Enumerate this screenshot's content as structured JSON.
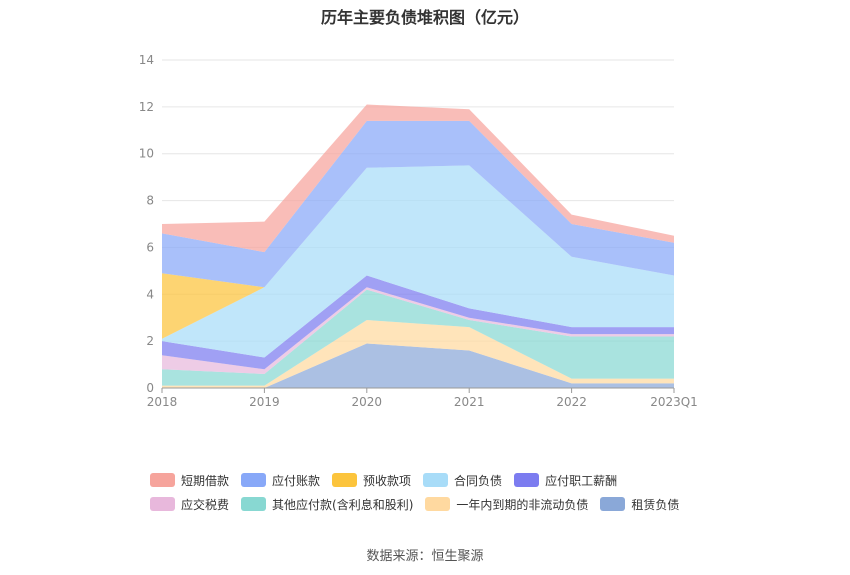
{
  "chart_data": {
    "type": "area",
    "stacked": true,
    "title": "历年主要负债堆积图（亿元）",
    "categories": [
      "2018",
      "2019",
      "2020",
      "2021",
      "2022",
      "2023Q1"
    ],
    "ylim": [
      0,
      14
    ],
    "yticks": [
      "0",
      "2",
      "4",
      "6",
      "8",
      "10",
      "12",
      "14"
    ],
    "grid": true,
    "legend_position": "bottom",
    "series": [
      {
        "name": "租赁负债",
        "color": "#8aa8d8",
        "values": [
          0.0,
          0.0,
          1.9,
          1.6,
          0.2,
          0.2
        ]
      },
      {
        "name": "一年内到期的非流动负债",
        "color": "#ffd9a0",
        "values": [
          0.1,
          0.1,
          1.0,
          1.0,
          0.2,
          0.2
        ]
      },
      {
        "name": "其他应付款(含利息和股利)",
        "color": "#88d8d2",
        "values": [
          0.7,
          0.5,
          1.3,
          0.3,
          1.8,
          1.8
        ]
      },
      {
        "name": "应交税费",
        "color": "#e8b8dc",
        "values": [
          0.6,
          0.2,
          0.1,
          0.1,
          0.1,
          0.1
        ]
      },
      {
        "name": "应付职工薪酬",
        "color": "#7c7cf0",
        "values": [
          0.6,
          0.5,
          0.5,
          0.4,
          0.3,
          0.3
        ]
      },
      {
        "name": "合同负债",
        "color": "#a8dcf8",
        "values": [
          0.1,
          3.0,
          4.6,
          6.1,
          3.0,
          2.2
        ]
      },
      {
        "name": "预收款项",
        "color": "#fcc43c",
        "values": [
          2.8,
          0.0,
          0.0,
          0.0,
          0.0,
          0.0
        ]
      },
      {
        "name": "应付账款",
        "color": "#88a8f8",
        "values": [
          1.7,
          1.5,
          2.0,
          1.9,
          1.4,
          1.4
        ]
      },
      {
        "name": "短期借款",
        "color": "#f6a49c",
        "values": [
          0.4,
          1.3,
          0.7,
          0.5,
          0.4,
          0.3
        ]
      }
    ],
    "legend_order": [
      "短期借款",
      "应付账款",
      "预收款项",
      "合同负债",
      "应付职工薪酬",
      "应交税费",
      "其他应付款(含利息和股利)",
      "一年内到期的非流动负债",
      "租赁负债"
    ]
  },
  "source_text": "数据来源：恒生聚源"
}
